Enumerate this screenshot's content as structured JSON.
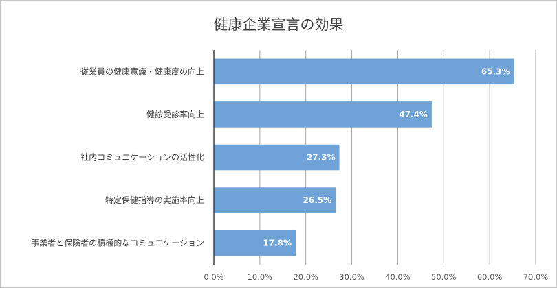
{
  "chart_data": {
    "type": "bar",
    "orientation": "horizontal",
    "title": "健康企業宣言の効果",
    "categories": [
      "従業員の健康意識・健康度の向上",
      "健診受診率向上",
      "社内コミュニケーションの活性化",
      "特定保健指導の実施率向上",
      "事業者と保険者の積極的なコミュニケーション"
    ],
    "values": [
      65.3,
      47.4,
      27.3,
      26.5,
      17.8
    ],
    "data_labels": [
      "65.3%",
      "47.4%",
      "27.3%",
      "26.5%",
      "17.8%"
    ],
    "xlim": [
      0,
      70
    ],
    "xticks": [
      "0.0%",
      "10.0%",
      "20.0%",
      "30.0%",
      "40.0%",
      "50.0%",
      "60.0%",
      "70.0%"
    ],
    "xlabel": "",
    "ylabel": "",
    "grid": "vertical",
    "bar_color": "#6fa3d8"
  }
}
